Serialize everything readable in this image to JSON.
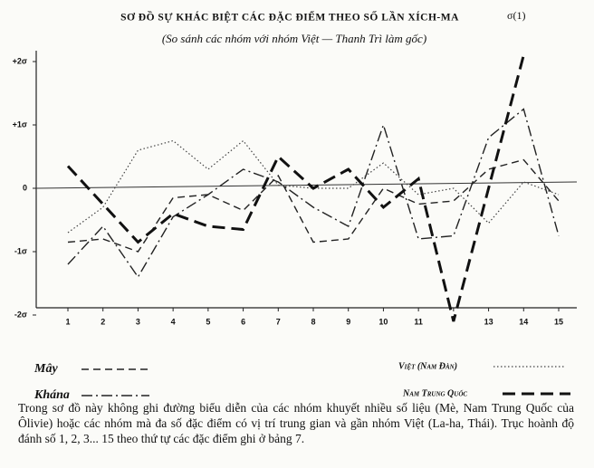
{
  "chart_data": {
    "type": "line",
    "title": "SƠ ĐỒ SỰ KHÁC BIỆT CÁC ĐẶC ĐIỂM THEO SỐ LẦN XÍCH-MA",
    "title_mark": "σ(1)",
    "subtitle": "(So sánh các nhóm với nhóm Việt — Thanh Trì làm gốc)",
    "categories": [
      1,
      2,
      3,
      4,
      5,
      6,
      7,
      8,
      9,
      10,
      11,
      null,
      13,
      14,
      15
    ],
    "ylim": [
      -2,
      2.1
    ],
    "yticks": [
      {
        "value": 2,
        "label": "+2σ"
      },
      {
        "value": 1,
        "label": "+1σ"
      },
      0,
      {
        "value": -1,
        "label": "-1σ"
      },
      {
        "value": -2,
        "label": "-2σ"
      }
    ],
    "series": [
      {
        "name": "Mây",
        "color": "#222",
        "dash": "8,5",
        "width": 1.4,
        "values": [
          -0.85,
          -0.8,
          -1.0,
          -0.15,
          -0.1,
          -0.35,
          0.2,
          -0.85,
          -0.8,
          0,
          -0.25,
          -0.2,
          0.3,
          0.45,
          -0.2
        ]
      },
      {
        "name": "Kháng",
        "color": "#222",
        "dash": "12,4,2,4",
        "width": 1.4,
        "values": [
          -1.2,
          -0.6,
          -1.4,
          -0.45,
          -0.1,
          0.3,
          0.1,
          -0.3,
          -0.6,
          1.0,
          -0.8,
          -0.75,
          0.8,
          1.25,
          -0.75
        ]
      },
      {
        "name": "Việt (Nam Đàn)",
        "color": "#444",
        "dash": "1.5,2.5",
        "width": 1.2,
        "values": [
          -0.7,
          -0.3,
          0.6,
          0.75,
          0.3,
          0.75,
          0.05,
          0,
          0,
          0.4,
          -0.1,
          0,
          -0.55,
          0.1,
          -0.1
        ]
      },
      {
        "name": "Nam Trung Quốc",
        "color": "#111",
        "dash": "14,7",
        "width": 3,
        "values": [
          0.35,
          -0.25,
          -0.85,
          -0.4,
          -0.6,
          -0.65,
          0.5,
          0,
          0.3,
          -0.3,
          0.15,
          -2.1,
          0,
          2.1,
          null
        ]
      }
    ],
    "caption": "Trong sơ đồ này không ghi đường biểu diễn của các nhóm khuyết nhiều số liệu (Mè, Nam Trung Quốc của Ôlivie) hoặc các nhóm mà đa số đặc điểm có vị trí trung gian và gần nhóm Việt (La-ha, Thái). Trục hoành độ đánh số 1, 2, 3... 15 theo thứ tự các đặc điểm ghi ở bảng 7."
  }
}
